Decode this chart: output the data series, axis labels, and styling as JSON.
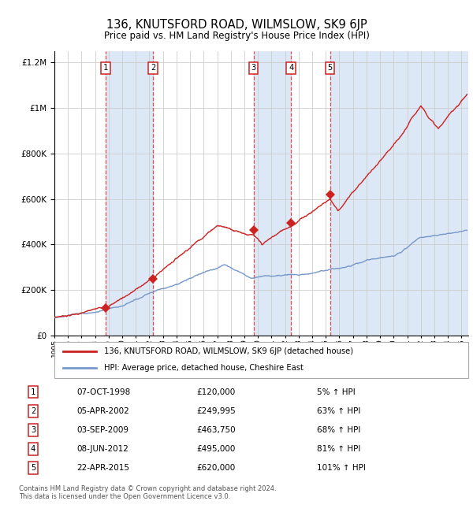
{
  "title": "136, KNUTSFORD ROAD, WILMSLOW, SK9 6JP",
  "subtitle": "Price paid vs. HM Land Registry's House Price Index (HPI)",
  "legend_line1": "136, KNUTSFORD ROAD, WILMSLOW, SK9 6JP (detached house)",
  "legend_line2": "HPI: Average price, detached house, Cheshire East",
  "footer1": "Contains HM Land Registry data © Crown copyright and database right 2024.",
  "footer2": "This data is licensed under the Open Government Licence v3.0.",
  "sale_points": [
    {
      "label": "1",
      "price": 120000,
      "x_year": 1998.77
    },
    {
      "label": "2",
      "price": 249995,
      "x_year": 2002.26
    },
    {
      "label": "3",
      "price": 463750,
      "x_year": 2009.67
    },
    {
      "label": "4",
      "price": 495000,
      "x_year": 2012.44
    },
    {
      "label": "5",
      "price": 620000,
      "x_year": 2015.31
    }
  ],
  "table_rows": [
    {
      "num": "1",
      "date": "07-OCT-1998",
      "price": "£120,000",
      "pct": "5% ↑ HPI"
    },
    {
      "num": "2",
      "date": "05-APR-2002",
      "price": "£249,995",
      "pct": "63% ↑ HPI"
    },
    {
      "num": "3",
      "date": "03-SEP-2009",
      "price": "£463,750",
      "pct": "68% ↑ HPI"
    },
    {
      "num": "4",
      "date": "08-JUN-2012",
      "price": "£495,000",
      "pct": "81% ↑ HPI"
    },
    {
      "num": "5",
      "date": "22-APR-2015",
      "price": "£620,000",
      "pct": "101% ↑ HPI"
    }
  ],
  "hpi_color": "#7799cc",
  "price_color": "#cc2222",
  "dashed_line_color": "#dd3333",
  "bg_band_color": "#dce8f5",
  "grid_color": "#cccccc",
  "ylim": [
    0,
    1250000
  ],
  "xlim_start": 1995.0,
  "xlim_end": 2025.5
}
